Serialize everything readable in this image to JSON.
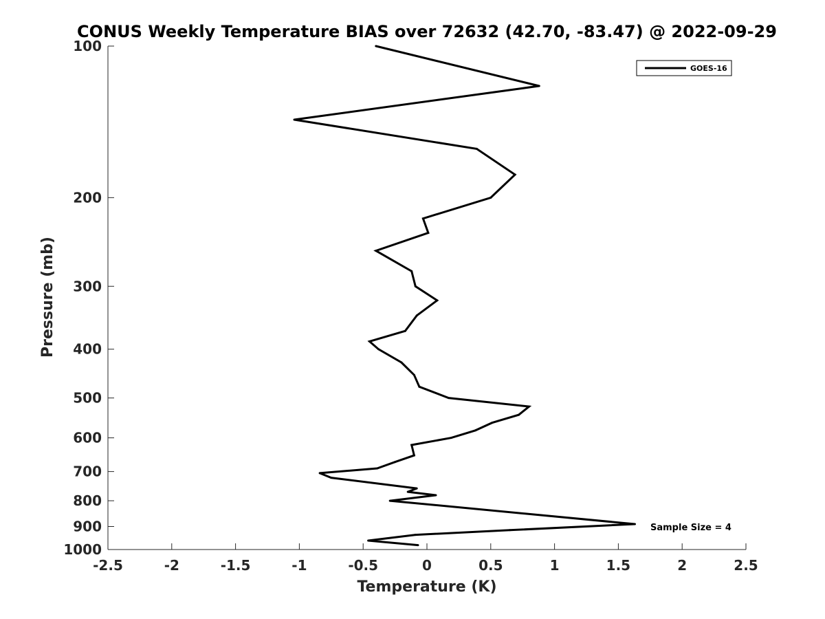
{
  "chart_data": {
    "type": "line",
    "title": "CONUS Weekly Temperature BIAS over 72632 (42.70, -83.47) @ 2022-09-29",
    "xlabel": "Temperature (K)",
    "ylabel": "Pressure (mb)",
    "xlim": [
      -2.5,
      2.5
    ],
    "ylim": [
      100,
      1000
    ],
    "y_scale": "log",
    "y_reversed": true,
    "x_ticks": [
      -2.5,
      -2,
      -1.5,
      -1,
      -0.5,
      0,
      0.5,
      1,
      1.5,
      2,
      2.5
    ],
    "x_tick_labels": [
      "-2.5",
      "-2",
      "-1.5",
      "-1",
      "-0.5",
      "0",
      "0.5",
      "1",
      "1.5",
      "2",
      "2.5"
    ],
    "y_ticks": [
      100,
      200,
      300,
      400,
      500,
      600,
      700,
      800,
      900,
      1000
    ],
    "y_tick_labels": [
      "100",
      "200",
      "300",
      "400",
      "500",
      "600",
      "700",
      "800",
      "900",
      "1000"
    ],
    "grid": false,
    "legend_position": "top-right",
    "series": [
      {
        "name": "GOES-16",
        "color": "#000000",
        "points": [
          {
            "x": -0.4,
            "y": 100
          },
          {
            "x": 0.88,
            "y": 120
          },
          {
            "x": -1.04,
            "y": 140
          },
          {
            "x": 0.39,
            "y": 160
          },
          {
            "x": 0.69,
            "y": 180
          },
          {
            "x": 0.5,
            "y": 200
          },
          {
            "x": -0.03,
            "y": 220
          },
          {
            "x": 0.01,
            "y": 235
          },
          {
            "x": -0.4,
            "y": 255
          },
          {
            "x": -0.12,
            "y": 280
          },
          {
            "x": -0.09,
            "y": 300
          },
          {
            "x": 0.08,
            "y": 320
          },
          {
            "x": -0.08,
            "y": 343
          },
          {
            "x": -0.17,
            "y": 368
          },
          {
            "x": -0.45,
            "y": 386
          },
          {
            "x": -0.38,
            "y": 400
          },
          {
            "x": -0.2,
            "y": 425
          },
          {
            "x": -0.1,
            "y": 450
          },
          {
            "x": -0.06,
            "y": 475
          },
          {
            "x": 0.17,
            "y": 500
          },
          {
            "x": 0.8,
            "y": 520
          },
          {
            "x": 0.72,
            "y": 540
          },
          {
            "x": 0.51,
            "y": 560
          },
          {
            "x": 0.38,
            "y": 580
          },
          {
            "x": 0.19,
            "y": 600
          },
          {
            "x": -0.12,
            "y": 620
          },
          {
            "x": -0.1,
            "y": 650
          },
          {
            "x": -0.25,
            "y": 670
          },
          {
            "x": -0.39,
            "y": 690
          },
          {
            "x": -0.84,
            "y": 705
          },
          {
            "x": -0.75,
            "y": 720
          },
          {
            "x": -0.08,
            "y": 756
          },
          {
            "x": -0.15,
            "y": 768
          },
          {
            "x": 0.07,
            "y": 780
          },
          {
            "x": -0.29,
            "y": 800
          },
          {
            "x": 1.63,
            "y": 890
          },
          {
            "x": 0.65,
            "y": 915
          },
          {
            "x": -0.09,
            "y": 935
          },
          {
            "x": -0.46,
            "y": 960
          },
          {
            "x": -0.07,
            "y": 980
          }
        ]
      }
    ],
    "annotations": [
      "Sample Size = 4"
    ]
  }
}
